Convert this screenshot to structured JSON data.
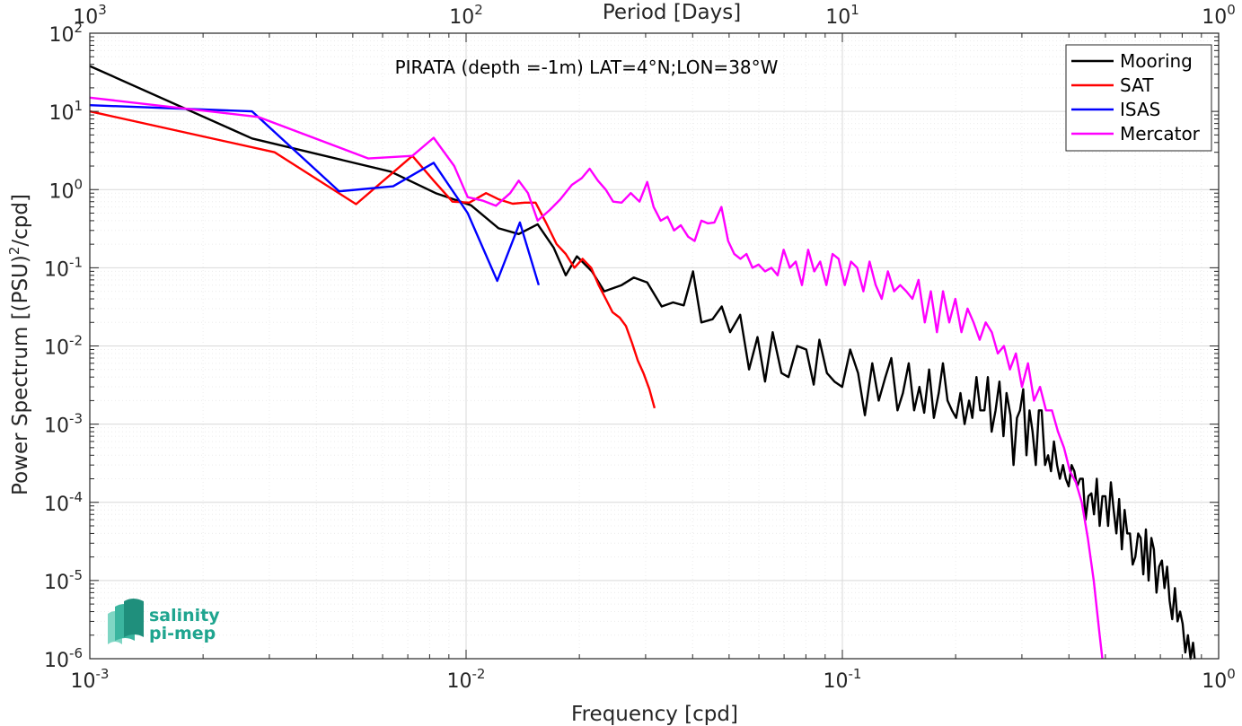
{
  "chart_data": {
    "type": "line",
    "title": "PIRATA (depth =-1m) LAT=4°N;LON=38°W",
    "xlabel": "Frequency [cpd]",
    "ylabel": "Power Spectrum [(PSU)^2/cpd]",
    "ylabel_parts": {
      "a": "Power Spectrum [(PSU)",
      "sup": "2",
      "b": "/cpd]"
    },
    "top_xlabel": "Period [Days]",
    "x_scale": "log",
    "y_scale": "log",
    "xlim": [
      0.001,
      1
    ],
    "ylim": [
      1e-06,
      100
    ],
    "x_ticks": [
      {
        "base": "10",
        "exp": "-3"
      },
      {
        "base": "10",
        "exp": "-2"
      },
      {
        "base": "10",
        "exp": "-1"
      },
      {
        "base": "10",
        "exp": "0"
      }
    ],
    "top_ticks": [
      {
        "base": "10",
        "exp": "3"
      },
      {
        "base": "10",
        "exp": "2"
      },
      {
        "base": "10",
        "exp": "1"
      },
      {
        "base": "10",
        "exp": "0"
      }
    ],
    "y_ticks": [
      {
        "base": "10",
        "exp": "-6"
      },
      {
        "base": "10",
        "exp": "-5"
      },
      {
        "base": "10",
        "exp": "-4"
      },
      {
        "base": "10",
        "exp": "-3"
      },
      {
        "base": "10",
        "exp": "-2"
      },
      {
        "base": "10",
        "exp": "-1"
      },
      {
        "base": "10",
        "exp": "0"
      },
      {
        "base": "10",
        "exp": "1"
      },
      {
        "base": "10",
        "exp": "2"
      }
    ],
    "grid": true,
    "minor_grid": true,
    "legend_position": "top-right",
    "series": [
      {
        "name": "Mooring",
        "color": "#000000",
        "x": [
          0.001,
          0.0027,
          0.0063,
          0.0083,
          0.0103,
          0.0122,
          0.0138,
          0.0155,
          0.0171,
          0.0184,
          0.0197,
          0.0216,
          0.0233,
          0.0259,
          0.0279,
          0.0303,
          0.0331,
          0.0355,
          0.0379,
          0.0401,
          0.0422,
          0.0452,
          0.0478,
          0.0503,
          0.0535,
          0.0565,
          0.0595,
          0.0623,
          0.0653,
          0.0689,
          0.0719,
          0.0758,
          0.0802,
          0.0839,
          0.0869,
          0.091,
          0.0953,
          0.0999,
          0.1049,
          0.1101,
          0.1148,
          0.1201,
          0.1249,
          0.1301,
          0.1349,
          0.1401,
          0.1448,
          0.1501,
          0.1551,
          0.1602,
          0.165,
          0.17,
          0.1751,
          0.1803,
          0.1851,
          0.1903,
          0.1955,
          0.2006,
          0.206,
          0.2113,
          0.2171,
          0.2215,
          0.2271,
          0.2326,
          0.2385,
          0.2436,
          0.2492,
          0.2553,
          0.2614,
          0.268,
          0.2731,
          0.2797,
          0.2851,
          0.2911,
          0.2966,
          0.3025,
          0.3085,
          0.3143,
          0.3203,
          0.3266,
          0.3329,
          0.3386,
          0.3456,
          0.3521,
          0.3585,
          0.3649,
          0.3721,
          0.3785,
          0.3858,
          0.3925,
          0.3995,
          0.4067,
          0.4135,
          0.4207,
          0.4284,
          0.4355,
          0.443,
          0.4507,
          0.459,
          0.4665,
          0.4743,
          0.4829,
          0.4911,
          0.5001,
          0.5085,
          0.5171,
          0.5259,
          0.5348,
          0.5441,
          0.553,
          0.5625,
          0.5714,
          0.5811,
          0.591,
          0.6005,
          0.611,
          0.6208,
          0.6307,
          0.6409,
          0.6514,
          0.6626,
          0.6727,
          0.6837,
          0.6948,
          0.7066,
          0.7179,
          0.7295,
          0.7406,
          0.7528,
          0.765,
          0.7773,
          0.7899,
          0.8022,
          0.8154,
          0.8285,
          0.8419,
          0.8548,
          0.8636
        ],
        "y": [
          38,
          4.5,
          1.7,
          0.9,
          0.63,
          0.32,
          0.27,
          0.36,
          0.18,
          0.08,
          0.14,
          0.09,
          0.05,
          0.06,
          0.075,
          0.065,
          0.032,
          0.036,
          0.033,
          0.09,
          0.02,
          0.022,
          0.032,
          0.015,
          0.025,
          0.005,
          0.013,
          0.0035,
          0.015,
          0.0045,
          0.004,
          0.01,
          0.009,
          0.0032,
          0.012,
          0.0045,
          0.0035,
          0.003,
          0.009,
          0.0045,
          0.0013,
          0.006,
          0.002,
          0.004,
          0.007,
          0.0015,
          0.0025,
          0.006,
          0.0015,
          0.003,
          0.0014,
          0.005,
          0.0012,
          0.0025,
          0.006,
          0.002,
          0.0015,
          0.0012,
          0.0025,
          0.001,
          0.002,
          0.0012,
          0.004,
          0.0015,
          0.0015,
          0.004,
          0.0008,
          0.0015,
          0.0035,
          0.0007,
          0.0025,
          0.0013,
          0.0003,
          0.0012,
          0.0015,
          0.0028,
          0.0004,
          0.0015,
          0.0008,
          0.0003,
          0.0015,
          0.0015,
          0.0003,
          0.0004,
          0.00025,
          0.0006,
          0.0003,
          0.0002,
          0.0003,
          0.0002,
          0.00016,
          0.0003,
          0.00025,
          0.00016,
          0.0002,
          0.0002,
          6e-05,
          0.00012,
          0.00013,
          7e-05,
          0.0002,
          5e-05,
          0.00012,
          0.00012,
          5e-05,
          0.00018,
          8e-05,
          4e-05,
          0.00011,
          2.5e-05,
          8e-05,
          4e-05,
          4e-05,
          1.6e-05,
          2e-05,
          4e-05,
          3.5e-05,
          1.2e-05,
          4.5e-05,
          1e-05,
          3.5e-05,
          2.5e-05,
          7e-06,
          1.5e-05,
          1.8e-05,
          8e-06,
          1.5e-05,
          5.5e-06,
          3.2e-06,
          8e-06,
          3e-06,
          4e-06,
          2.8e-06,
          1.2e-06,
          2e-06,
          1e-06,
          1.6e-06,
          1e-06
        ]
      },
      {
        "name": "SAT",
        "color": "#ff0000",
        "x": [
          0.001,
          0.0031,
          0.0051,
          0.0072,
          0.0082,
          0.0092,
          0.0102,
          0.0113,
          0.0122,
          0.0133,
          0.0143,
          0.0153,
          0.0163,
          0.0174,
          0.0184,
          0.0194,
          0.0204,
          0.0215,
          0.0225,
          0.0235,
          0.0245,
          0.0256,
          0.0266,
          0.0276,
          0.0286,
          0.0296,
          0.0307,
          0.0317
        ],
        "y": [
          10,
          3.0,
          0.65,
          2.7,
          1.3,
          0.7,
          0.68,
          0.9,
          0.75,
          0.66,
          0.68,
          0.68,
          0.38,
          0.2,
          0.15,
          0.1,
          0.13,
          0.1,
          0.06,
          0.04,
          0.027,
          0.023,
          0.018,
          0.011,
          0.0065,
          0.0045,
          0.0028,
          0.0016
        ]
      },
      {
        "name": "ISAS",
        "color": "#0000ff",
        "x": [
          0.001,
          0.0027,
          0.0046,
          0.0064,
          0.0082,
          0.0101,
          0.0121,
          0.0139,
          0.0156
        ],
        "y": [
          12,
          10,
          0.95,
          1.1,
          2.2,
          0.5,
          0.068,
          0.38,
          0.06
        ]
      },
      {
        "name": "Mercator",
        "color": "#ff00ff",
        "x": [
          0.001,
          0.0028,
          0.0055,
          0.0072,
          0.0082,
          0.0093,
          0.0101,
          0.0111,
          0.012,
          0.0131,
          0.0138,
          0.0146,
          0.0155,
          0.0167,
          0.0178,
          0.0191,
          0.0203,
          0.0213,
          0.0224,
          0.0235,
          0.0246,
          0.0259,
          0.0274,
          0.0289,
          0.0303,
          0.0315,
          0.0329,
          0.0343,
          0.0357,
          0.0372,
          0.0389,
          0.0405,
          0.0422,
          0.0439,
          0.0457,
          0.0477,
          0.0497,
          0.0516,
          0.0536,
          0.0556,
          0.0577,
          0.0599,
          0.0623,
          0.0648,
          0.0673,
          0.0698,
          0.0725,
          0.0752,
          0.0781,
          0.0811,
          0.0842,
          0.0873,
          0.0907,
          0.0942,
          0.0977,
          0.1015,
          0.1054,
          0.1095,
          0.1137,
          0.1181,
          0.1226,
          0.1272,
          0.1321,
          0.1372,
          0.1425,
          0.1479,
          0.1535,
          0.1594,
          0.1656,
          0.1718,
          0.1784,
          0.1852,
          0.1923,
          0.1996,
          0.2072,
          0.2151,
          0.2232,
          0.2317,
          0.2404,
          0.2495,
          0.2589,
          0.2687,
          0.2788,
          0.2892,
          0.3001,
          0.3114,
          0.3231,
          0.3352,
          0.3477,
          0.3607,
          0.3741,
          0.3881,
          0.4025,
          0.4174,
          0.4329,
          0.4489,
          0.4656,
          0.4828,
          0.4908
        ],
        "y": [
          15,
          8.5,
          2.5,
          2.7,
          4.6,
          2.0,
          0.8,
          0.72,
          0.62,
          0.9,
          1.3,
          0.9,
          0.4,
          0.55,
          0.75,
          1.15,
          1.4,
          1.85,
          1.3,
          1.0,
          0.7,
          0.68,
          0.9,
          0.7,
          1.25,
          0.6,
          0.4,
          0.45,
          0.3,
          0.35,
          0.25,
          0.22,
          0.4,
          0.37,
          0.38,
          0.6,
          0.22,
          0.15,
          0.13,
          0.15,
          0.1,
          0.11,
          0.09,
          0.1,
          0.08,
          0.17,
          0.1,
          0.12,
          0.06,
          0.17,
          0.09,
          0.12,
          0.06,
          0.15,
          0.13,
          0.06,
          0.12,
          0.1,
          0.05,
          0.12,
          0.06,
          0.04,
          0.09,
          0.05,
          0.06,
          0.05,
          0.04,
          0.07,
          0.02,
          0.05,
          0.015,
          0.05,
          0.02,
          0.04,
          0.015,
          0.03,
          0.02,
          0.012,
          0.02,
          0.015,
          0.008,
          0.01,
          0.005,
          0.008,
          0.003,
          0.006,
          0.002,
          0.003,
          0.0015,
          0.0015,
          0.0008,
          0.0005,
          0.00025,
          0.00018,
          0.0001,
          3.5e-05,
          1e-05,
          2e-06,
          1e-06
        ]
      }
    ]
  },
  "logo": {
    "line1": "salinity",
    "line2": "pi-mep"
  }
}
